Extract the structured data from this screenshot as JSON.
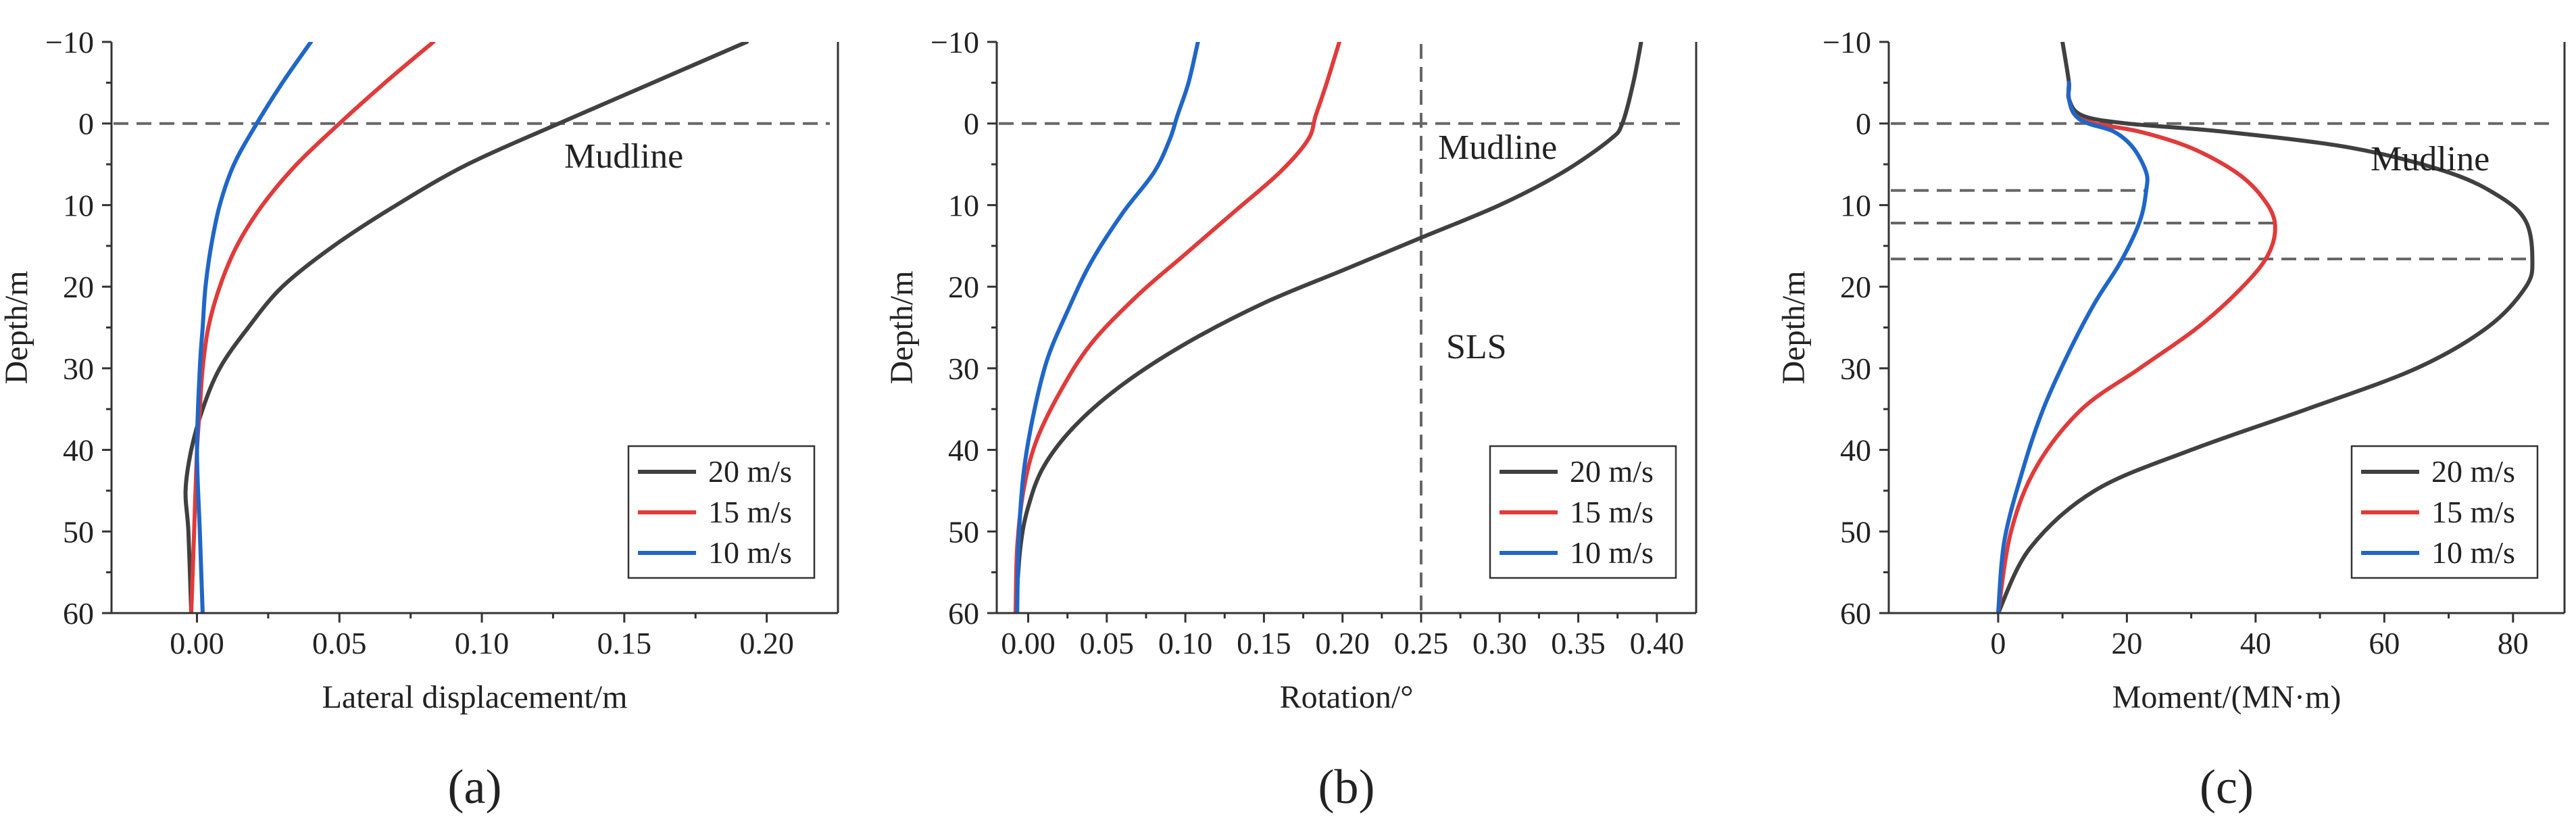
{
  "chart_data": [
    {
      "type": "line",
      "panel_label": "(a)",
      "xlabel": "Lateral displacement/m",
      "ylabel": "Depth/m",
      "xlim": [
        -0.03,
        0.225
      ],
      "ylim": [
        -10,
        60
      ],
      "y_inverted": true,
      "xticks": [
        0.0,
        0.05,
        0.1,
        0.15,
        0.2
      ],
      "xtick_labels": [
        "0.00",
        "0.05",
        "0.10",
        "0.15",
        "0.20"
      ],
      "yticks": [
        -10,
        0,
        10,
        20,
        30,
        40,
        50,
        60
      ],
      "ytick_labels": [
        "−10",
        "0",
        "10",
        "20",
        "30",
        "40",
        "50",
        "60"
      ],
      "reference_lines": [
        {
          "orientation": "horizontal",
          "value": 0
        }
      ],
      "annotations": [
        {
          "text": "Mudline",
          "x": 0.158,
          "y": 4.5
        }
      ],
      "legend": "bottom-right",
      "series": [
        {
          "name": "20 m/s",
          "color": "#404040",
          "x": [
            0.193,
            0.16,
            0.127,
            0.095,
            0.07,
            0.048,
            0.03,
            0.018,
            0.008,
            0.002,
            -0.002,
            -0.004,
            -0.003,
            -0.002
          ],
          "y": [
            -10,
            -5,
            0,
            5,
            10,
            15,
            20,
            25,
            30,
            35,
            40,
            45,
            50,
            60
          ]
        },
        {
          "name": "15 m/s",
          "color": "#e03b3b",
          "x": [
            0.083,
            0.066,
            0.05,
            0.035,
            0.023,
            0.014,
            0.008,
            0.004,
            0.002,
            0.001,
            0.0,
            -0.001,
            -0.002
          ],
          "y": [
            -10,
            -5,
            0,
            5,
            10,
            15,
            20,
            25,
            30,
            35,
            40,
            50,
            60
          ]
        },
        {
          "name": "10 m/s",
          "color": "#1f66c8",
          "x": [
            0.04,
            0.03,
            0.021,
            0.013,
            0.008,
            0.005,
            0.003,
            0.002,
            0.001,
            0.0,
            0.001,
            0.002
          ],
          "y": [
            -10,
            -5,
            0,
            5,
            10,
            15,
            20,
            25,
            30,
            40,
            50,
            60
          ]
        }
      ]
    },
    {
      "type": "line",
      "panel_label": "(b)",
      "xlabel": "Rotation/°",
      "ylabel": "Depth/m",
      "xlim": [
        -0.02,
        0.425
      ],
      "ylim": [
        -10,
        60
      ],
      "y_inverted": true,
      "xticks": [
        0.0,
        0.05,
        0.1,
        0.15,
        0.2,
        0.25,
        0.3,
        0.35,
        0.4
      ],
      "xtick_labels": [
        "0.00",
        "0.05",
        "0.10",
        "0.15",
        "0.20",
        "0.25",
        "0.30",
        "0.35",
        "0.40"
      ],
      "yticks": [
        -10,
        0,
        10,
        20,
        30,
        40,
        50,
        60
      ],
      "ytick_labels": [
        "−10",
        "0",
        "10",
        "20",
        "30",
        "40",
        "50",
        "60"
      ],
      "reference_lines": [
        {
          "orientation": "horizontal",
          "value": 0
        },
        {
          "orientation": "vertical",
          "value": 0.25
        }
      ],
      "annotations": [
        {
          "text": "Mudline",
          "x": 0.265,
          "y": 4.0
        },
        {
          "text": "SLS",
          "x": 0.268,
          "y": 29.0
        }
      ],
      "legend": "bottom-right",
      "series": [
        {
          "name": "20 m/s",
          "color": "#404040",
          "x": [
            0.39,
            0.385,
            0.378,
            0.37,
            0.34,
            0.3,
            0.25,
            0.2,
            0.15,
            0.1,
            0.06,
            0.03,
            0.01,
            0.0,
            -0.005,
            -0.008
          ],
          "y": [
            -10,
            -5,
            0,
            2,
            6,
            10,
            14,
            18,
            22,
            27,
            32,
            37,
            42,
            47,
            52,
            60
          ]
        },
        {
          "name": "15 m/s",
          "color": "#e03b3b",
          "x": [
            0.198,
            0.19,
            0.183,
            0.178,
            0.16,
            0.13,
            0.1,
            0.07,
            0.04,
            0.02,
            0.005,
            -0.003,
            -0.007,
            -0.008
          ],
          "y": [
            -10,
            -5,
            -1,
            2,
            6,
            11,
            16,
            21,
            27,
            33,
            39,
            45,
            52,
            60
          ]
        },
        {
          "name": "10 m/s",
          "color": "#1f66c8",
          "x": [
            0.108,
            0.102,
            0.095,
            0.09,
            0.08,
            0.06,
            0.04,
            0.025,
            0.012,
            0.003,
            -0.003,
            -0.006,
            -0.007
          ],
          "y": [
            -10,
            -5,
            -1,
            2,
            6,
            11,
            17,
            23,
            29,
            36,
            43,
            51,
            60
          ]
        }
      ]
    },
    {
      "type": "line",
      "panel_label": "(c)",
      "xlabel": "Moment/(MN·m)",
      "ylabel": "Depth/m",
      "xlim": [
        -17,
        88
      ],
      "ylim": [
        -10,
        60
      ],
      "y_inverted": true,
      "xticks": [
        0,
        20,
        40,
        60,
        80
      ],
      "xtick_labels": [
        "0",
        "20",
        "40",
        "60",
        "80"
      ],
      "yticks": [
        -10,
        0,
        10,
        20,
        30,
        40,
        50,
        60
      ],
      "ytick_labels": [
        "−10",
        "0",
        "10",
        "20",
        "30",
        "40",
        "50",
        "60"
      ],
      "reference_lines": [
        {
          "orientation": "horizontal",
          "value": 0
        },
        {
          "orientation": "horizontal",
          "value": 8.2,
          "x_end": 23
        },
        {
          "orientation": "horizontal",
          "value": 12.2,
          "x_end": 43
        },
        {
          "orientation": "horizontal",
          "value": 16.6,
          "x_end": 83
        }
      ],
      "annotations": [
        {
          "text": "Mudline",
          "x": 61,
          "y": 5.5
        }
      ],
      "legend": "bottom-right",
      "series": [
        {
          "name": "20 m/s",
          "color": "#404040",
          "x": [
            10,
            11,
            11,
            13,
            20,
            35,
            55,
            70,
            78,
            82,
            83,
            82,
            76,
            65,
            48,
            30,
            15,
            5,
            0
          ],
          "y": [
            -10,
            -5,
            -3,
            -1,
            0,
            1,
            3,
            6,
            9,
            12,
            16.6,
            20,
            25,
            30,
            35,
            40,
            45,
            52,
            60
          ]
        },
        {
          "name": "15 m/s",
          "color": "#e03b3b",
          "x": [
            11,
            11,
            12,
            15,
            22,
            30,
            37,
            41,
            43,
            42,
            38,
            31,
            22,
            13,
            6,
            2,
            0
          ],
          "y": [
            -5,
            -3,
            -1,
            0,
            1,
            3,
            6,
            9,
            12.2,
            16,
            20,
            25,
            30,
            35,
            42,
            50,
            60
          ]
        },
        {
          "name": "10 m/s",
          "color": "#1f66c8",
          "x": [
            11,
            11,
            12,
            14,
            18,
            21,
            23,
            23,
            22,
            19,
            15,
            11,
            7,
            4,
            1,
            0
          ],
          "y": [
            -5,
            -3,
            -1,
            0,
            1,
            3,
            6,
            8.2,
            12,
            17,
            22,
            28,
            35,
            42,
            51,
            60
          ]
        }
      ]
    }
  ]
}
